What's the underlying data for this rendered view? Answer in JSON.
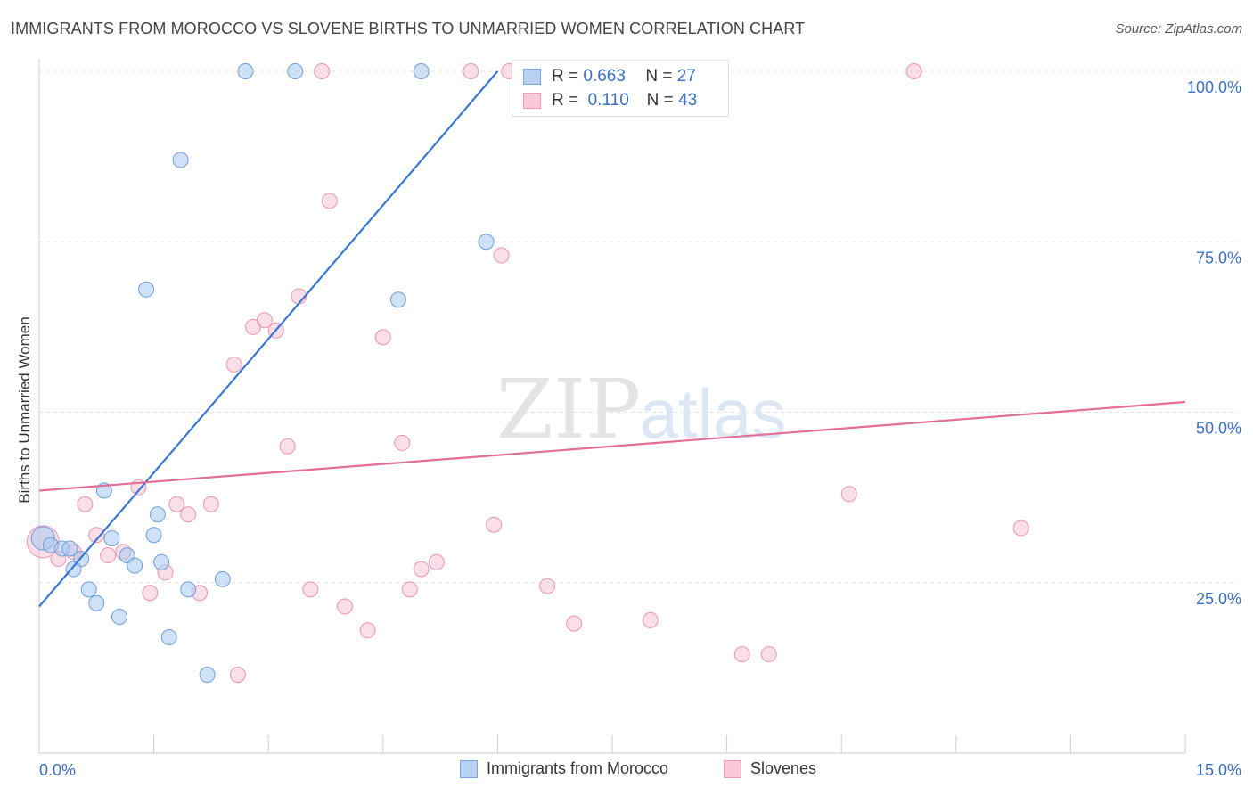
{
  "title": "IMMIGRANTS FROM MOROCCO VS SLOVENE BIRTHS TO UNMARRIED WOMEN CORRELATION CHART",
  "source": "Source: ZipAtlas.com",
  "watermark": {
    "zip": "ZIP",
    "atlas": "atlas"
  },
  "legend": {
    "series1": {
      "r_label": "R =",
      "r_value": "0.663",
      "n_label": "N =",
      "n_value": "27"
    },
    "series2": {
      "r_label": "R =",
      "r_value": "0.110",
      "n_label": "N =",
      "n_value": "43"
    }
  },
  "chart_data": {
    "type": "scatter",
    "title": "IMMIGRANTS FROM MOROCCO VS SLOVENE BIRTHS TO UNMARRIED WOMEN CORRELATION CHART",
    "xlabel": "",
    "ylabel": "Births to Unmarried Women",
    "xlim": [
      0,
      15
    ],
    "ylim": [
      0,
      100
    ],
    "x_tick_labels": [
      "0.0%",
      "15.0%"
    ],
    "y_ticks": [
      25,
      50,
      75,
      100
    ],
    "y_tick_labels": [
      "25.0%",
      "50.0%",
      "75.0%",
      "100.0%"
    ],
    "grid": true,
    "legend_position": "top-center",
    "colors": {
      "series1": "#a8c8f0",
      "series1_line": "#3a78d0",
      "series2": "#f5b8cc",
      "series2_line": "#e07098",
      "axis_text": "#3a6fc4"
    },
    "series": [
      {
        "name": "Immigrants from Morocco",
        "points": [
          [
            0.05,
            31.5
          ],
          [
            0.15,
            30.5
          ],
          [
            0.3,
            30
          ],
          [
            0.4,
            30
          ],
          [
            0.55,
            28.5
          ],
          [
            0.45,
            27
          ],
          [
            0.65,
            24
          ],
          [
            0.75,
            22
          ],
          [
            0.85,
            38.5
          ],
          [
            0.95,
            31.5
          ],
          [
            1.05,
            20
          ],
          [
            1.15,
            29
          ],
          [
            1.25,
            27.5
          ],
          [
            1.4,
            68
          ],
          [
            1.5,
            32
          ],
          [
            1.55,
            35
          ],
          [
            1.6,
            28
          ],
          [
            1.7,
            17
          ],
          [
            1.85,
            87
          ],
          [
            1.95,
            24
          ],
          [
            2.2,
            11.5
          ],
          [
            2.4,
            25.5
          ],
          [
            2.7,
            100
          ],
          [
            3.35,
            100
          ],
          [
            5.0,
            100
          ],
          [
            5.85,
            75
          ],
          [
            4.7,
            66.5
          ]
        ],
        "trend": {
          "x": [
            0,
            6.0
          ],
          "y": [
            21.5,
            100
          ]
        }
      },
      {
        "name": "Slovenes",
        "points": [
          [
            0.05,
            31
          ],
          [
            0.25,
            28.5
          ],
          [
            0.45,
            29.5
          ],
          [
            0.6,
            36.5
          ],
          [
            0.75,
            32
          ],
          [
            0.9,
            29
          ],
          [
            1.1,
            29.5
          ],
          [
            1.3,
            39
          ],
          [
            1.45,
            23.5
          ],
          [
            1.65,
            26.5
          ],
          [
            1.8,
            36.5
          ],
          [
            1.95,
            35
          ],
          [
            2.1,
            23.5
          ],
          [
            2.25,
            36.5
          ],
          [
            2.55,
            57
          ],
          [
            2.8,
            62.5
          ],
          [
            2.95,
            63.5
          ],
          [
            3.1,
            62
          ],
          [
            3.25,
            45
          ],
          [
            3.4,
            67
          ],
          [
            3.55,
            24
          ],
          [
            3.8,
            81
          ],
          [
            4.0,
            21.5
          ],
          [
            4.3,
            18
          ],
          [
            4.5,
            61
          ],
          [
            4.75,
            45.5
          ],
          [
            4.85,
            24
          ],
          [
            5.0,
            27
          ],
          [
            5.2,
            28
          ],
          [
            5.65,
            100
          ],
          [
            5.95,
            33.5
          ],
          [
            6.05,
            73
          ],
          [
            6.15,
            100
          ],
          [
            6.65,
            24.5
          ],
          [
            7.0,
            19
          ],
          [
            8.0,
            19.5
          ],
          [
            9.2,
            14.5
          ],
          [
            9.55,
            14.5
          ],
          [
            10.6,
            38
          ],
          [
            11.45,
            100
          ],
          [
            12.85,
            33
          ],
          [
            3.7,
            100
          ],
          [
            2.6,
            11.5
          ]
        ],
        "trend": {
          "x": [
            0,
            15
          ],
          "y": [
            38.5,
            51.5
          ]
        }
      }
    ]
  }
}
